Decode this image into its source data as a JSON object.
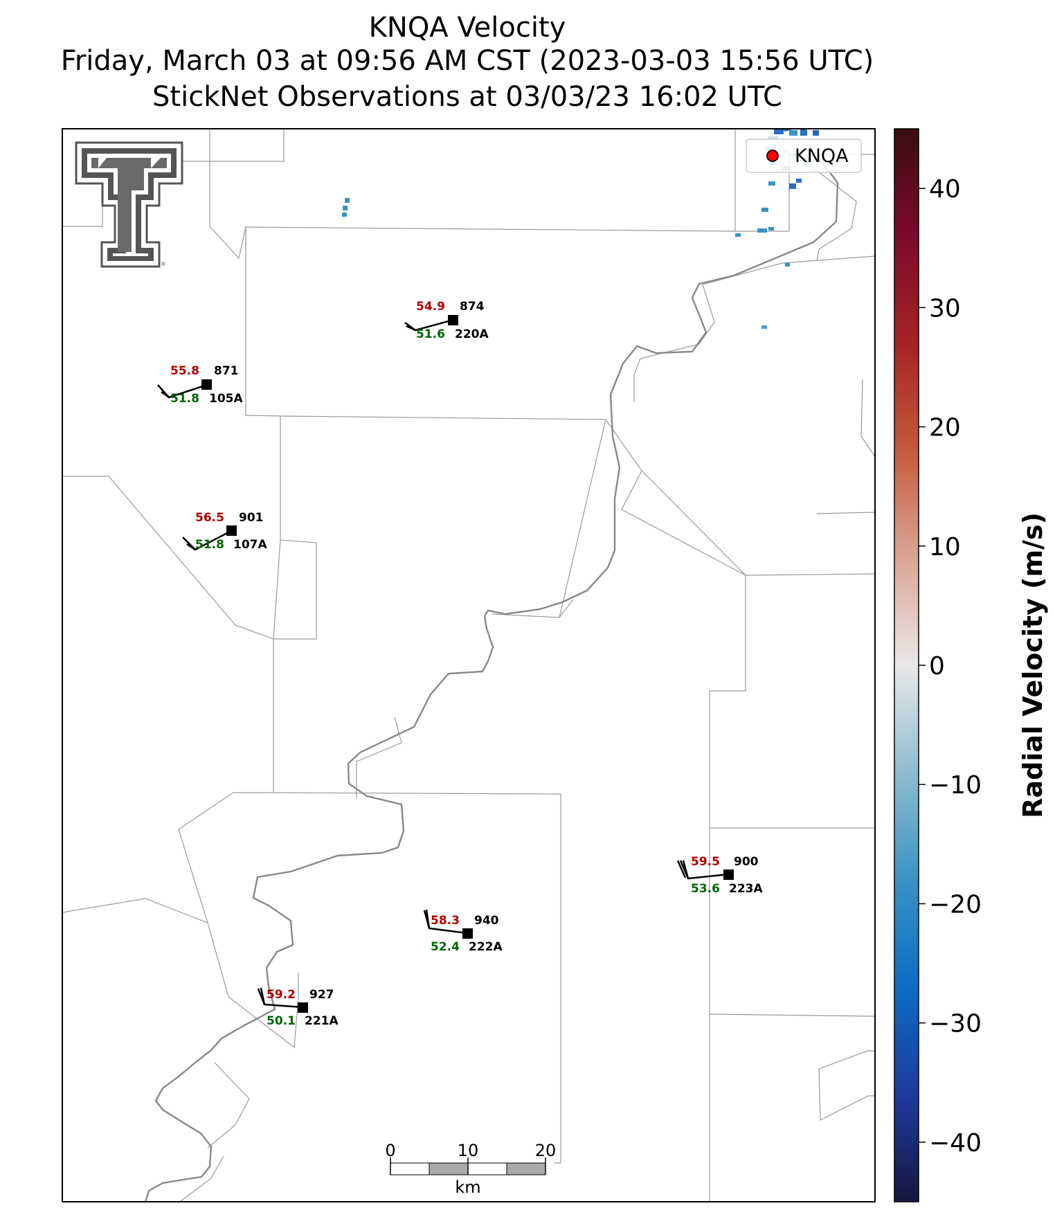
{
  "title": {
    "line1": "KNQA Velocity",
    "line2": "Friday, March 03 at 09:56 AM CST (2023-03-03 15:56 UTC)",
    "line3": "StickNet Observations at 03/03/23 16:02 UTC"
  },
  "legend": {
    "label": "KNQA",
    "marker_color": "#ff0000"
  },
  "colorbar": {
    "label": "Radial Velocity (m/s)",
    "range": [
      -45,
      45
    ],
    "ticks": [
      "40",
      "30",
      "20",
      "10",
      "0",
      "−10",
      "−20",
      "−30",
      "−40"
    ],
    "tick_values": [
      40,
      30,
      20,
      10,
      0,
      -10,
      -20,
      -30,
      -40
    ],
    "colors": [
      "#16173f",
      "#1f3a9e",
      "#0b6dc4",
      "#3a93c4",
      "#8fbccf",
      "#e8e8e8",
      "#dba596",
      "#c55a3c",
      "#a42424",
      "#7d0a2c",
      "#3a0d14"
    ]
  },
  "scalebar": {
    "ticks": [
      "0",
      "10",
      "20"
    ],
    "unit": "km"
  },
  "stations": [
    {
      "id": "220A",
      "temp": "54.9",
      "pressure": "874",
      "dewpoint": "51.6"
    },
    {
      "id": "105A",
      "temp": "55.8",
      "pressure": "871",
      "dewpoint": "51.8"
    },
    {
      "id": "107A",
      "temp": "56.5",
      "pressure": "901",
      "dewpoint": "51.8"
    },
    {
      "id": "223A",
      "temp": "59.5",
      "pressure": "900",
      "dewpoint": "53.6"
    },
    {
      "id": "222A",
      "temp": "58.3",
      "pressure": "940",
      "dewpoint": "52.4"
    },
    {
      "id": "221A",
      "temp": "59.2",
      "pressure": "927",
      "dewpoint": "50.1"
    }
  ],
  "colors": {
    "temp": "#b00000",
    "dewpoint": "#006400",
    "border": "#999999",
    "river": "#888888"
  },
  "logo": {
    "icon": "texas-tech-double-t-logo"
  }
}
